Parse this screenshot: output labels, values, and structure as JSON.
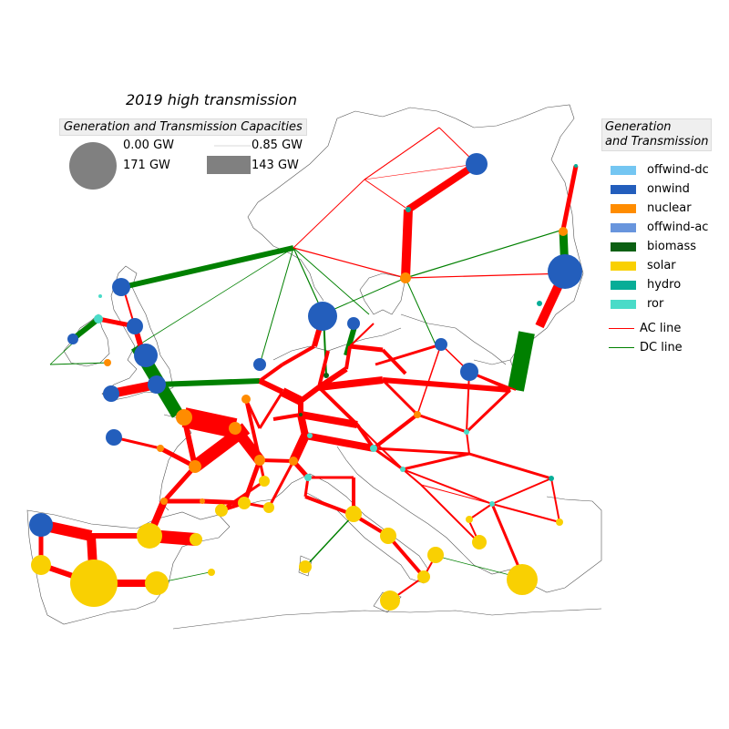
{
  "title": "2019 high transmission",
  "capacity_legend": {
    "header": "Generation and Transmission Capacities",
    "gen_min": "0.00 GW",
    "gen_max": "171 GW",
    "line_min": "0.85 GW",
    "line_max": "143 GW"
  },
  "generation_legend": {
    "header_line1": "Generation",
    "header_line2": "and Transmission",
    "carriers": [
      {
        "name": "offwind-dc",
        "color": "#74c6f2"
      },
      {
        "name": "onwind",
        "color": "#235ebc"
      },
      {
        "name": "nuclear",
        "color": "#ff8c00"
      },
      {
        "name": "offwind-ac",
        "color": "#6895dd"
      },
      {
        "name": "biomass",
        "color": "#0c6013"
      },
      {
        "name": "solar",
        "color": "#f9d002"
      },
      {
        "name": "hydro",
        "color": "#08ad97"
      },
      {
        "name": "ror",
        "color": "#4adbc8"
      }
    ],
    "lines": [
      {
        "name": "AC line",
        "color": "#ff0000"
      },
      {
        "name": "DC line",
        "color": "#008000"
      }
    ]
  },
  "colors": {
    "ac": "#ff0000",
    "dc": "#008000",
    "coast": "#555555",
    "capacity_sample": "#808080"
  }
}
